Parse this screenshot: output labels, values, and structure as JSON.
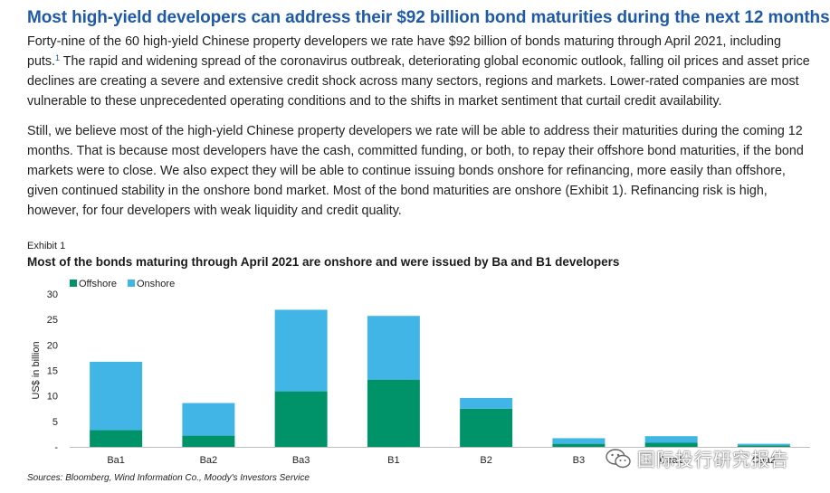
{
  "headline": "Most high-yield developers can address their $92 billion bond maturities during the next 12 months",
  "paragraph1": {
    "before_sup": "Forty-nine of the 60 high-yield Chinese property developers we rate have $92 billion of bonds maturing through April 2021, including puts.",
    "sup": "1",
    "after_sup": " The rapid and widening spread of the coronavirus outbreak, deteriorating global economic outlook, falling oil prices and asset price declines are creating a severe and extensive credit shock across many sectors, regions and markets. Lower-rated companies are most vulnerable to these unprecedented operating conditions and to the shifts in market sentiment that curtail credit availability."
  },
  "paragraph2": "Still, we believe most of the high-yield Chinese property developers we rate will be able to address their maturities during the coming 12 months. That is because most developers have the cash, committed funding, or both, to repay their offshore bond maturities, if the bond markets were to close. We also expect they will be able to continue issuing bonds onshore for refinancing, more easily than offshore, given continued stability in the onshore bond market. Most of the bond maturities are onshore (Exhibit 1). Refinancing risk is high, however, for four developers with weak liquidity and credit quality.",
  "exhibit_label": "Exhibit 1",
  "chart_data": {
    "type": "bar",
    "stacked": true,
    "title": "Most of the bonds maturing through April 2021 are onshore and were issued by Ba and B1 developers",
    "xlabel": "",
    "ylabel": "US$ in billion",
    "ylim": [
      0,
      30
    ],
    "yticks": [
      0,
      5,
      10,
      15,
      20,
      25,
      30
    ],
    "ytick_labels": [
      "-",
      "5",
      "10",
      "15",
      "20",
      "25",
      "30"
    ],
    "categories": [
      "Ba1",
      "Ba2",
      "Ba3",
      "B1",
      "B2",
      "B3",
      "Caa1",
      "Caa2"
    ],
    "series": [
      {
        "name": "Offshore",
        "color": "#00936a",
        "values": [
          3.3,
          2.2,
          10.9,
          13.2,
          7.5,
          0.6,
          0.8,
          0.3
        ]
      },
      {
        "name": "Onshore",
        "color": "#41b6e6",
        "values": [
          13.4,
          6.4,
          16.0,
          12.5,
          2.1,
          1.1,
          1.3,
          0.3
        ]
      }
    ],
    "legend_position": "top-left",
    "grid": false
  },
  "source": "Sources: Bloomberg, Wind Information Co., Moody's Investors Service",
  "watermark": {
    "text": "国际投行研究报告",
    "icon": "wechat-icon"
  }
}
